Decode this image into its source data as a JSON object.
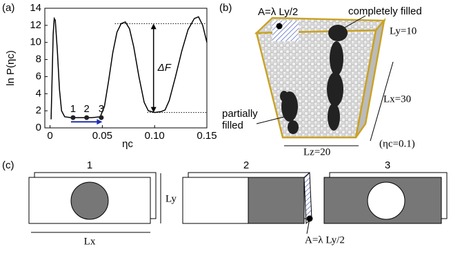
{
  "chart_data": {
    "type": "line",
    "panel_label": "(a)",
    "ylabel": "ln P(ηc)",
    "xlabel": "ηc",
    "x": [
      0.001,
      0.002,
      0.003,
      0.004,
      0.005,
      0.007,
      0.009,
      0.011,
      0.014,
      0.02,
      0.03,
      0.04,
      0.048,
      0.052,
      0.056,
      0.06,
      0.064,
      0.068,
      0.072,
      0.076,
      0.08,
      0.085,
      0.09,
      0.094,
      0.1,
      0.106,
      0.11,
      0.114,
      0.12,
      0.126,
      0.132,
      0.138,
      0.142,
      0.146,
      0.15
    ],
    "series": [
      {
        "color": "#000000",
        "values": [
          1.0,
          6.0,
          11.0,
          12.8,
          12.6,
          9.0,
          4.5,
          2.0,
          1.3,
          1.2,
          1.2,
          1.2,
          1.3,
          2.5,
          5.5,
          8.8,
          11.2,
          12.2,
          12.4,
          11.6,
          9.5,
          6.0,
          3.0,
          2.0,
          1.8,
          1.9,
          2.1,
          3.2,
          6.0,
          9.0,
          11.5,
          12.8,
          13.0,
          12.0,
          10.0
        ]
      }
    ],
    "xlim": [
      -0.005,
      0.15
    ],
    "ylim": [
      0,
      14
    ],
    "xticks": [
      0,
      0.05,
      {
        "value": 0.1,
        "label": "0.10"
      },
      0.15
    ],
    "yticks": [
      0,
      2,
      4,
      6,
      8,
      10,
      12,
      14
    ],
    "markers": {
      "x": [
        0.022,
        0.035,
        0.049
      ],
      "y": [
        1.2,
        1.2,
        1.2
      ],
      "labels": [
        "1",
        "2",
        "3"
      ]
    },
    "arrow": {
      "x": [
        0.02,
        0.05
      ],
      "y": 0.7,
      "color": "#1f2fb0"
    },
    "levels": [
      {
        "y": 12.2,
        "x": [
          0.062,
          0.15
        ]
      },
      {
        "y": 1.8,
        "x": [
          0.093,
          0.15
        ]
      }
    ],
    "delta": {
      "x": 0.099,
      "label": "ΔF"
    }
  },
  "panel_b": {
    "label": "(b)",
    "area": "A=λ Ly/2",
    "filled": "completely filled",
    "ly": "Ly=10",
    "lx": "Lx=30",
    "partial": [
      "partially",
      "filled"
    ],
    "lz": "Lz=20",
    "eta": "(ηc=0.1)"
  },
  "panel_c": {
    "label": "(c)",
    "slabs": [
      "1",
      "2",
      "3"
    ],
    "ly": "Ly",
    "lx": "Lx",
    "area": "A=λ Ly/2"
  }
}
